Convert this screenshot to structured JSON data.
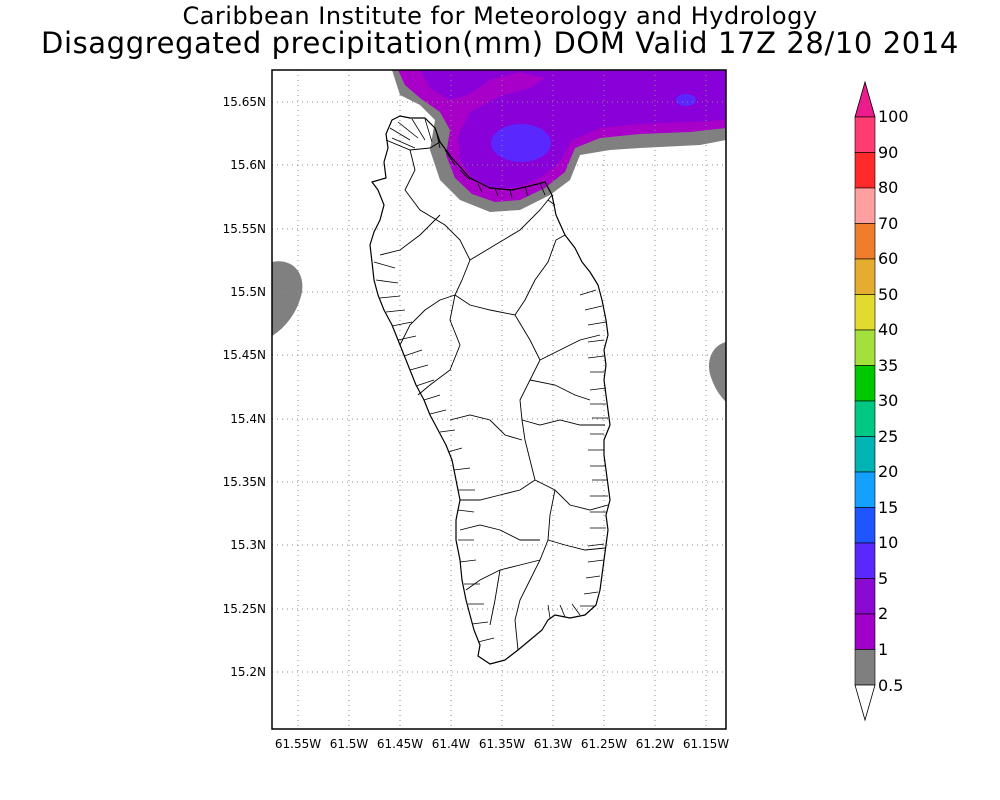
{
  "header": {
    "line1": "Caribbean Institute for Meteorology and Hydrology",
    "line2": "Disaggregated precipitation(mm) DOM Valid 17Z 28/10 2014"
  },
  "axes": {
    "lat_ticks": [
      "15.65N",
      "15.6N",
      "15.55N",
      "15.5N",
      "15.45N",
      "15.4N",
      "15.35N",
      "15.3N",
      "15.25N",
      "15.2N"
    ],
    "lon_ticks": [
      "61.55W",
      "61.5W",
      "61.45W",
      "61.4W",
      "61.35W",
      "61.3W",
      "61.25W",
      "61.2W",
      "61.15W"
    ]
  },
  "colorbar": {
    "labels": [
      "100",
      "90",
      "80",
      "70",
      "60",
      "50",
      "40",
      "35",
      "30",
      "25",
      "20",
      "15",
      "10",
      "5",
      "2",
      "1",
      "0.5"
    ],
    "colors": [
      "#ff3d73",
      "#ff2a2a",
      "#ff9f9f",
      "#ee7e2c",
      "#e5ad2f",
      "#e3da2f",
      "#a3e03b",
      "#00c800",
      "#00c882",
      "#00b4b4",
      "#14a0ff",
      "#1e55ff",
      "#5a28ff",
      "#8a0ad2",
      "#a000c8",
      "#7f7f7f"
    ],
    "top_arrow_color": "#ec1c8c"
  },
  "precip_colors": {
    "grey": "#808080",
    "light_purple": "#a800c8",
    "purple": "#8a00d8",
    "blue": "#5a28ff"
  }
}
